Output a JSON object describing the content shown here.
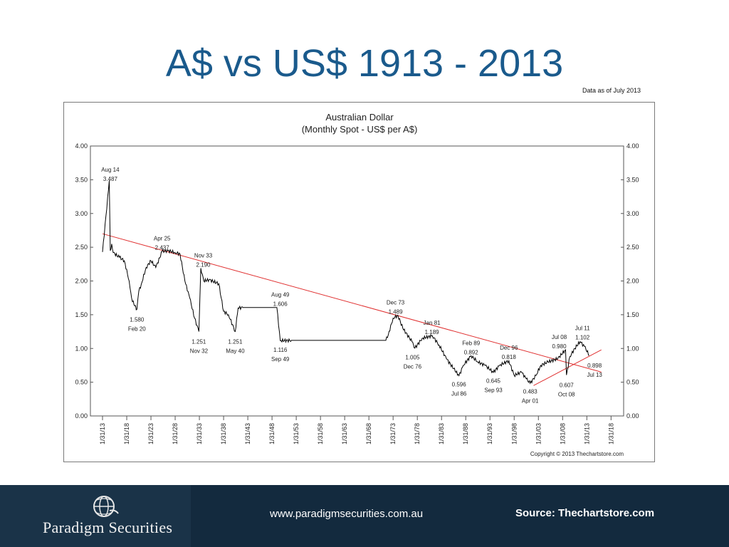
{
  "slide": {
    "title": "A$ vs US$ 1913 - 2013",
    "data_date": "Data as of July 2013"
  },
  "footer": {
    "logo_text": "Paradigm Securities",
    "url": "www.paradigmsecurities.com.au",
    "source": "Source: Thechartstore.com"
  },
  "colors": {
    "title": "#1a5a8c",
    "series": "#000000",
    "trendline": "#e03030",
    "footer_bg": "#132a3e"
  },
  "chart_data": {
    "type": "line",
    "title": "Australian Dollar",
    "subtitle": "(Monthly Spot - US$ per A$)",
    "copyright": "Copyright © 2013 Thechartstore.com",
    "grid": false,
    "ylim": [
      0,
      4
    ],
    "xlim": [
      1910.5,
      2020.6
    ],
    "y_ticks": [
      "0.00",
      "0.50",
      "1.00",
      "1.50",
      "2.00",
      "2.50",
      "3.00",
      "3.50",
      "4.00"
    ],
    "x_ticks": [
      "1/31/13",
      "1/31/18",
      "1/31/23",
      "1/31/28",
      "1/31/33",
      "1/31/38",
      "1/31/43",
      "1/31/48",
      "1/31/53",
      "1/31/58",
      "1/31/63",
      "1/31/68",
      "1/31/73",
      "1/31/78",
      "1/31/83",
      "1/31/88",
      "1/31/93",
      "1/31/98",
      "1/31/03",
      "1/31/08",
      "1/31/13",
      "1/31/18"
    ],
    "series": [
      {
        "x": [
          1913.0,
          1914.4,
          1914.6,
          1914.9,
          1915.2,
          1916.5,
          1917.5,
          1918.5,
          1919.0,
          1919.5,
          1920.1,
          1920.5,
          1921.0,
          1922.0,
          1923.0,
          1924.0,
          1925.3,
          1926.5,
          1928.0,
          1929.0,
          1930.0,
          1931.0,
          1932.0,
          1932.9,
          1933.3,
          1933.9,
          1935.0,
          1937.0,
          1938.0,
          1939.0,
          1940.4,
          1941.0,
          1942.0,
          1949.0,
          1949.7,
          1952.0,
          1960.0,
          1968.0,
          1971.5,
          1972.0,
          1973.0,
          1974.0,
          1975.0,
          1976.9,
          1977.5,
          1979.0,
          1981.1,
          1982.5,
          1984.0,
          1985.5,
          1986.6,
          1987.5,
          1989.1,
          1990.5,
          1992.0,
          1993.7,
          1995.0,
          1996.9,
          1998.0,
          1999.5,
          2000.5,
          2001.3,
          2002.5,
          2003.5,
          2005.0,
          2007.0,
          2008.6,
          2008.8,
          2009.5,
          2010.5,
          2011.6,
          2012.5,
          2013.5
        ],
        "y": [
          2.43,
          3.487,
          2.45,
          2.55,
          2.42,
          2.35,
          2.3,
          2.0,
          1.75,
          1.65,
          1.58,
          1.85,
          1.95,
          2.2,
          2.3,
          2.2,
          2.437,
          2.45,
          2.42,
          2.4,
          2.0,
          1.75,
          1.45,
          1.251,
          2.19,
          2.0,
          2.02,
          1.96,
          1.55,
          1.5,
          1.251,
          1.6,
          1.606,
          1.606,
          1.116,
          1.12,
          1.12,
          1.12,
          1.12,
          1.2,
          1.45,
          1.489,
          1.3,
          1.1,
          1.005,
          1.15,
          1.189,
          1.05,
          0.85,
          0.7,
          0.596,
          0.75,
          0.892,
          0.8,
          0.75,
          0.645,
          0.75,
          0.818,
          0.6,
          0.65,
          0.55,
          0.483,
          0.6,
          0.75,
          0.8,
          0.85,
          0.98,
          0.607,
          0.88,
          1.0,
          1.102,
          1.03,
          0.898
        ],
        "color": "#000000"
      }
    ],
    "trendlines": [
      {
        "from": [
          1913.0,
          2.7
        ],
        "to": [
          2016.0,
          0.65
        ]
      },
      {
        "from": [
          2002.0,
          0.45
        ],
        "to": [
          2016.0,
          0.98
        ]
      }
    ],
    "annotations": [
      {
        "date": "Aug 14",
        "value": "3.487",
        "label_x": 1914.6,
        "label_y": 3.62,
        "pos": "above"
      },
      {
        "date": "Apr 25",
        "value": "2.437",
        "label_x": 1925.3,
        "label_y": 2.6,
        "pos": "above"
      },
      {
        "date": "Nov 33",
        "value": "2.190",
        "label_x": 1933.8,
        "label_y": 2.35,
        "pos": "above"
      },
      {
        "date": "Aug 49",
        "value": "1.606",
        "label_x": 1949.7,
        "label_y": 1.77,
        "pos": "above"
      },
      {
        "date": "Dec 73",
        "value": "1.489",
        "label_x": 1973.5,
        "label_y": 1.65,
        "pos": "above"
      },
      {
        "date": "Jan 81",
        "value": "1.189",
        "label_x": 1981.0,
        "label_y": 1.35,
        "pos": "above"
      },
      {
        "date": "Feb 89",
        "value": "0.892",
        "label_x": 1989.1,
        "label_y": 1.05,
        "pos": "above"
      },
      {
        "date": "Dec 96",
        "value": "0.818",
        "label_x": 1996.9,
        "label_y": 0.98,
        "pos": "above"
      },
      {
        "date": "Jul 08",
        "value": "0.980",
        "label_x": 2007.3,
        "label_y": 1.14,
        "pos": "above"
      },
      {
        "date": "Jul 11",
        "value": "1.102",
        "label_x": 2012.1,
        "label_y": 1.27,
        "pos": "above"
      },
      {
        "date": "Feb 20",
        "value": "1.580",
        "label_x": 1920.1,
        "label_y": 1.4,
        "pos": "below"
      },
      {
        "date": "Nov 32",
        "value": "1.251",
        "label_x": 1932.9,
        "label_y": 1.07,
        "pos": "below"
      },
      {
        "date": "May 40",
        "value": "1.251",
        "label_x": 1940.4,
        "label_y": 1.07,
        "pos": "below"
      },
      {
        "date": "Sep 49",
        "value": "1.116",
        "label_x": 1949.7,
        "label_y": 0.95,
        "pos": "below"
      },
      {
        "date": "Dec 76",
        "value": "1.005",
        "label_x": 1977.0,
        "label_y": 0.84,
        "pos": "below"
      },
      {
        "date": "Jul 86",
        "value": "0.596",
        "label_x": 1986.6,
        "label_y": 0.44,
        "pos": "below"
      },
      {
        "date": "Sep 93",
        "value": "0.645",
        "label_x": 1993.7,
        "label_y": 0.49,
        "pos": "below"
      },
      {
        "date": "Apr 01",
        "value": "0.483",
        "label_x": 2001.3,
        "label_y": 0.33,
        "pos": "below"
      },
      {
        "date": "Oct 08",
        "value": "0.607",
        "label_x": 2008.8,
        "label_y": 0.43,
        "pos": "below"
      },
      {
        "date": "Jul 13",
        "value": "0.898",
        "label_x": 2014.6,
        "label_y": 0.72,
        "pos": "below"
      }
    ]
  }
}
